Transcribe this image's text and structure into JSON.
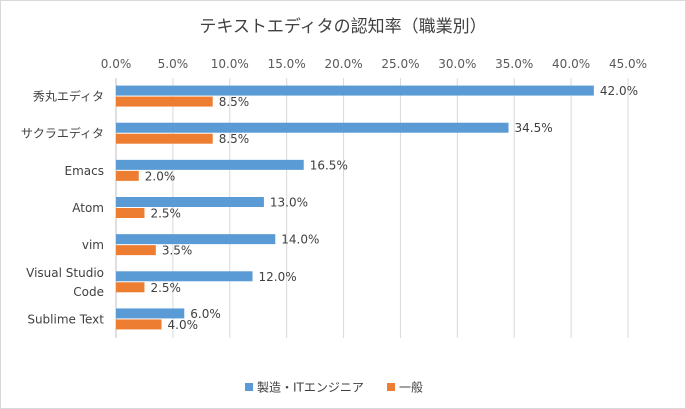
{
  "chart_data": {
    "type": "bar",
    "orientation": "horizontal",
    "title": "テキストエディタの認知率（職業別）",
    "categories": [
      [
        "秀丸エディタ"
      ],
      [
        "サクラエディタ"
      ],
      [
        "Emacs"
      ],
      [
        "Atom"
      ],
      [
        "vim"
      ],
      [
        "Visual Studio",
        "Code"
      ],
      [
        "Sublime Text"
      ]
    ],
    "series": [
      {
        "name": "製造・ITエンジニア",
        "color": "#5B9BD5",
        "values": [
          42.0,
          34.5,
          16.5,
          13.0,
          14.0,
          12.0,
          6.0
        ],
        "labels": [
          "42.0%",
          "34.5%",
          "16.5%",
          "13.0%",
          "14.0%",
          "12.0%",
          "6.0%"
        ]
      },
      {
        "name": "一般",
        "color": "#ED7D31",
        "values": [
          8.5,
          8.5,
          2.0,
          2.5,
          3.5,
          2.5,
          4.0
        ],
        "labels": [
          "8.5%",
          "8.5%",
          "2.0%",
          "2.5%",
          "3.5%",
          "2.5%",
          "4.0%"
        ]
      }
    ],
    "xlim": [
      0,
      45
    ],
    "x_ticks": [
      0,
      5,
      10,
      15,
      20,
      25,
      30,
      35,
      40,
      45
    ],
    "x_tick_labels": [
      "0.0%",
      "5.0%",
      "10.0%",
      "15.0%",
      "20.0%",
      "25.0%",
      "30.0%",
      "35.0%",
      "40.0%",
      "45.0%"
    ],
    "x_axis_position": "top",
    "grid": true,
    "legend_position": "bottom"
  }
}
